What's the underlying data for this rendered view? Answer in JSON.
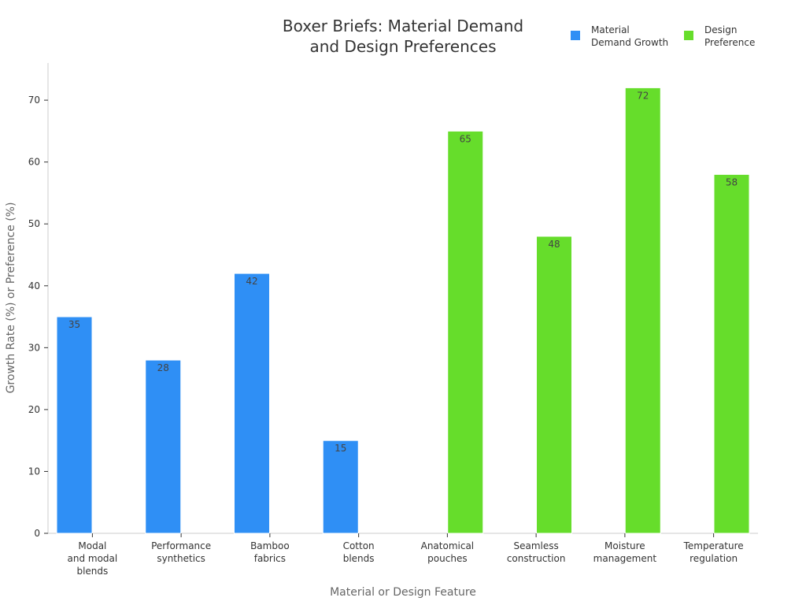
{
  "chart_data": {
    "type": "bar",
    "title": "Boxer Briefs: Material Demand and Design Preferences",
    "title_lines": [
      "Boxer Briefs: Material Demand",
      "and Design Preferences"
    ],
    "xlabel": "Material or Design Feature",
    "ylabel": "Growth Rate (%) or Preference (%)",
    "ylim": [
      0,
      76
    ],
    "yticks": [
      0,
      10,
      20,
      30,
      40,
      50,
      60,
      70
    ],
    "grid": false,
    "legend_position": "top-right",
    "categories": [
      "Modal and modal blends",
      "Performance synthetics",
      "Bamboo fabrics",
      "Cotton blends",
      "Anatomical pouches",
      "Seamless construction",
      "Moisture management",
      "Temperature regulation"
    ],
    "category_lines": [
      [
        "Modal",
        "and modal",
        "blends"
      ],
      [
        "Performance",
        "synthetics"
      ],
      [
        "Bamboo",
        "fabrics"
      ],
      [
        "Cotton",
        "blends"
      ],
      [
        "Anatomical",
        "pouches"
      ],
      [
        "Seamless",
        "construction"
      ],
      [
        "Moisture",
        "management"
      ],
      [
        "Temperature",
        "regulation"
      ]
    ],
    "series": [
      {
        "name": "Material Demand Growth",
        "legend_lines": [
          "Material",
          "Demand Growth"
        ],
        "color": "#2f8ff5",
        "values": [
          35,
          28,
          42,
          15,
          null,
          null,
          null,
          null
        ]
      },
      {
        "name": "Design Preference",
        "legend_lines": [
          "Design",
          "Preference"
        ],
        "color": "#66dd2b",
        "values": [
          null,
          null,
          null,
          null,
          65,
          48,
          72,
          58
        ]
      }
    ]
  }
}
